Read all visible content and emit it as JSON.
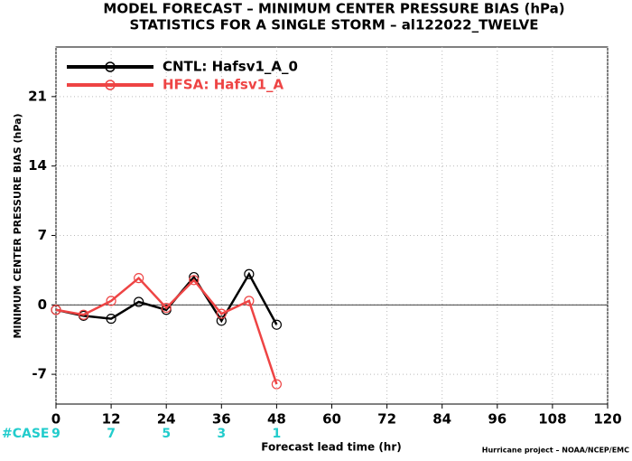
{
  "chart_data": {
    "type": "line",
    "title": "MODEL FORECAST – MINIMUM CENTER PRESSURE BIAS (hPa)",
    "subtitle": "STATISTICS FOR A SINGLE STORM – al122022_TWELVE",
    "y_label": "MINIMUM CENTER PRESSURE BIAS (hPa)",
    "x_label": "Forecast lead time (hr)",
    "footer": "Hurricane project – NOAA/NCEP/EMC",
    "x": [
      0,
      6,
      12,
      18,
      24,
      30,
      36,
      42,
      48
    ],
    "series": [
      {
        "name": "CNTL: Hafsv1_A_0",
        "color": "#000000",
        "values": [
          -0.5,
          -1.1,
          -1.4,
          0.3,
          -0.5,
          2.8,
          -1.6,
          3.1,
          -2.0
        ]
      },
      {
        "name": "HFSA: Hafsv1_A",
        "color": "#ee4444",
        "values": [
          -0.5,
          -1.0,
          0.4,
          2.7,
          -0.3,
          2.5,
          -0.9,
          0.4,
          -8.0
        ]
      }
    ],
    "xlim": [
      0,
      120
    ],
    "xticks": [
      0,
      12,
      24,
      36,
      48,
      60,
      72,
      84,
      96,
      108,
      120
    ],
    "ylim": [
      -10,
      26
    ],
    "yticks": [
      -7,
      0,
      7,
      14,
      21
    ],
    "grid": true,
    "legend": "upper left",
    "case_label": "#CASE",
    "case_color": "#22cccc",
    "cases": {
      "x": [
        0,
        12,
        24,
        36,
        48
      ],
      "values": [
        9,
        7,
        5,
        3,
        1
      ]
    }
  }
}
